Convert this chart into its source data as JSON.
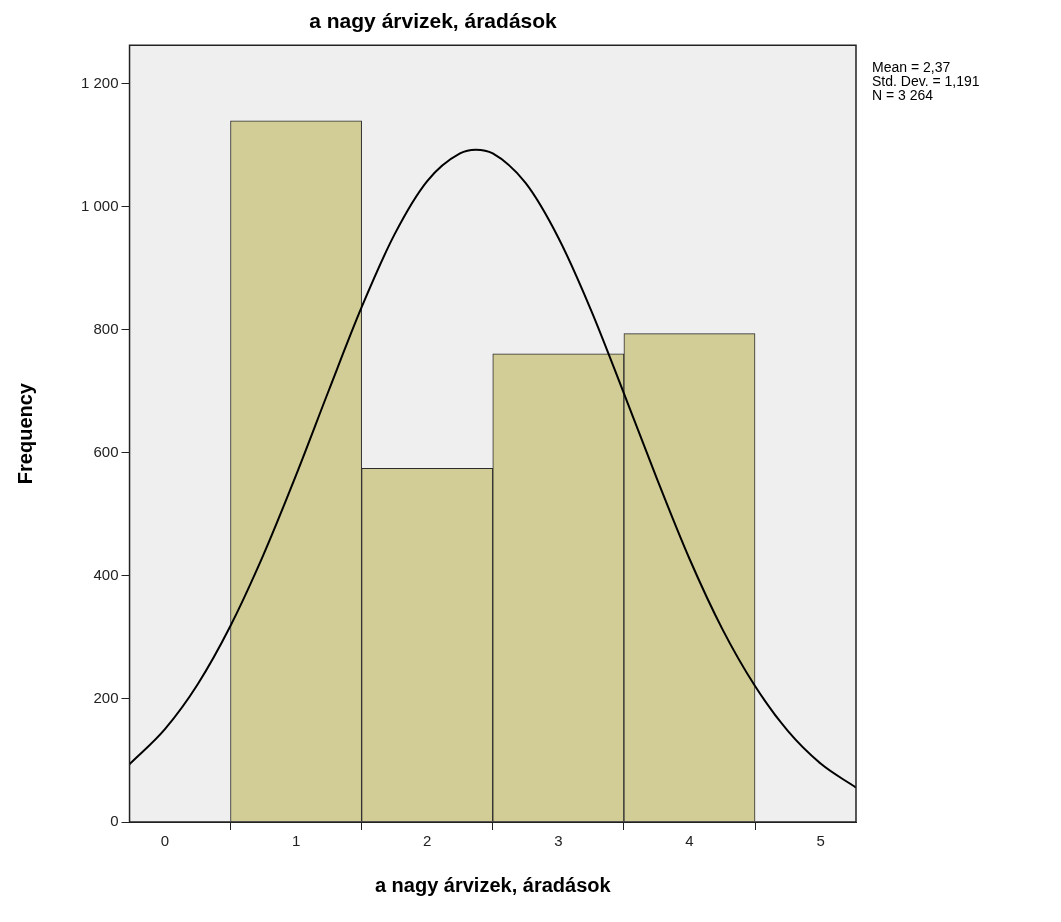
{
  "chart_data": {
    "type": "histogram",
    "title": "a nagy árvizek, áradások",
    "xlabel": "a nagy árvizek, áradások",
    "ylabel": "Frequency",
    "bins": [
      0.5,
      1.5,
      2.5,
      3.5,
      4.5
    ],
    "values": [
      1140,
      575,
      761,
      794
    ],
    "color": "#d2cd96",
    "series": [
      {
        "type": "line",
        "color": "#000000",
        "x": [
          -0.27,
          0,
          0.25,
          0.5,
          0.75,
          1,
          1.25,
          1.5,
          1.75,
          2,
          2.25,
          2.37,
          2.5,
          2.75,
          3,
          3.25,
          3.5,
          3.75,
          4,
          4.25,
          4.5,
          4.75,
          5,
          5.27
        ],
        "values": [
          94,
          151,
          224,
          319,
          434,
          564,
          702,
          837,
          955,
          1042,
          1087,
          1093,
          1087,
          1039,
          950,
          832,
          697,
          559,
          428,
          314,
          221,
          148,
          95,
          56
        ]
      }
    ],
    "xlim": [
      -0.27,
      5.27
    ],
    "xticks": [
      0,
      1,
      2,
      3,
      4,
      5
    ],
    "ylim": [
      0,
      1263
    ],
    "yticks": [
      0,
      200,
      400,
      600,
      800,
      {
        "value": 1000,
        "label": "1 000"
      },
      {
        "value": 1200,
        "label": "1 200"
      }
    ],
    "grid": false,
    "legend": false,
    "marker": "none",
    "line_style": "solid",
    "annotations": [
      "Mean = 2,37",
      "Std. Dev. = 1,191",
      "N = 3 264"
    ]
  }
}
